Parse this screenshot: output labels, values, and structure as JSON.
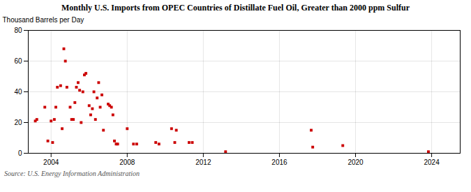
{
  "chart_data": {
    "type": "scatter",
    "title": "Monthly U.S. Imports from OPEC Countries of Distillate Fuel Oil, Greater than 2000 ppm Sulfur",
    "ylabel": "Thousand Barrels per Day",
    "caption": "Source: U.S. Energy Information Administration",
    "color": "#cc0000",
    "marker": "square",
    "grid": true,
    "xlim": [
      2002.8,
      2025.5
    ],
    "ylim": [
      0,
      80
    ],
    "xticks": [
      2004,
      2008,
      2012,
      2016,
      2020,
      2024
    ],
    "yticks": [
      0,
      20,
      40,
      60,
      80
    ],
    "x": [
      2003.17,
      2003.25,
      2003.67,
      2003.83,
      2004.0,
      2004.08,
      2004.17,
      2004.25,
      2004.33,
      2004.5,
      2004.58,
      2004.67,
      2004.75,
      2004.83,
      2005.0,
      2005.08,
      2005.17,
      2005.25,
      2005.33,
      2005.42,
      2005.5,
      2005.58,
      2005.67,
      2005.75,
      2005.83,
      2006.0,
      2006.08,
      2006.17,
      2006.25,
      2006.33,
      2006.42,
      2006.5,
      2006.58,
      2006.67,
      2006.75,
      2007.0,
      2007.08,
      2007.17,
      2007.25,
      2007.33,
      2007.42,
      2007.5,
      2008.0,
      2008.33,
      2008.5,
      2009.5,
      2009.67,
      2010.33,
      2010.5,
      2010.58,
      2011.25,
      2011.42,
      2013.17,
      2017.67,
      2017.75,
      2019.33,
      2023.83
    ],
    "values": [
      21,
      22,
      30,
      8,
      21,
      7,
      22,
      30,
      43,
      44,
      16,
      68,
      60,
      43,
      30,
      22,
      22,
      33,
      43,
      46,
      41,
      20,
      40,
      51,
      52,
      31,
      25,
      29,
      40,
      22,
      36,
      46,
      30,
      38,
      15,
      32,
      31,
      30,
      25,
      8,
      6,
      6,
      16,
      6,
      6,
      7,
      6,
      16,
      7,
      15,
      7,
      7,
      1,
      15,
      4,
      5,
      1
    ]
  }
}
